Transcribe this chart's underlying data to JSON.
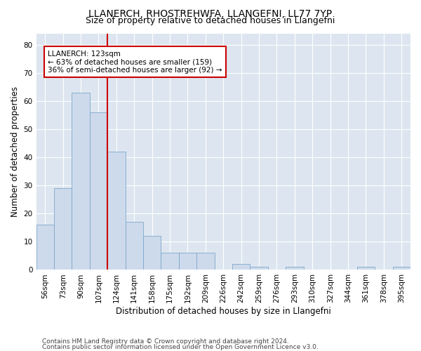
{
  "title1": "LLANERCH, RHOSTREHWFA, LLANGEFNI, LL77 7YP",
  "title2": "Size of property relative to detached houses in Llangefni",
  "xlabel": "Distribution of detached houses by size in Llangefni",
  "ylabel": "Number of detached properties",
  "categories": [
    "56sqm",
    "73sqm",
    "90sqm",
    "107sqm",
    "124sqm",
    "141sqm",
    "158sqm",
    "175sqm",
    "192sqm",
    "209sqm",
    "226sqm",
    "242sqm",
    "259sqm",
    "276sqm",
    "293sqm",
    "310sqm",
    "327sqm",
    "344sqm",
    "361sqm",
    "378sqm",
    "395sqm"
  ],
  "values": [
    16,
    29,
    63,
    56,
    42,
    17,
    12,
    6,
    6,
    6,
    0,
    2,
    1,
    0,
    1,
    0,
    0,
    0,
    1,
    0,
    1
  ],
  "bar_color": "#cddaeb",
  "bar_edge_color": "#7da8cc",
  "bar_width": 1.0,
  "vline_color": "#cc0000",
  "vline_index": 4,
  "annotation_line1": "LLANERCH: 123sqm",
  "annotation_line2": "← 63% of detached houses are smaller (159)",
  "annotation_line3": "36% of semi-detached houses are larger (92) →",
  "annotation_box_color": "#cc0000",
  "ylim": [
    0,
    84
  ],
  "yticks": [
    0,
    10,
    20,
    30,
    40,
    50,
    60,
    70,
    80
  ],
  "footer1": "Contains HM Land Registry data © Crown copyright and database right 2024.",
  "footer2": "Contains public sector information licensed under the Open Government Licence v3.0.",
  "plot_bg_color": "#dde6f0",
  "grid_color": "#ffffff",
  "title1_fontsize": 10,
  "title2_fontsize": 9,
  "xlabel_fontsize": 8.5,
  "ylabel_fontsize": 8.5,
  "tick_fontsize": 7.5,
  "annotation_fontsize": 7.5,
  "footer_fontsize": 6.5
}
